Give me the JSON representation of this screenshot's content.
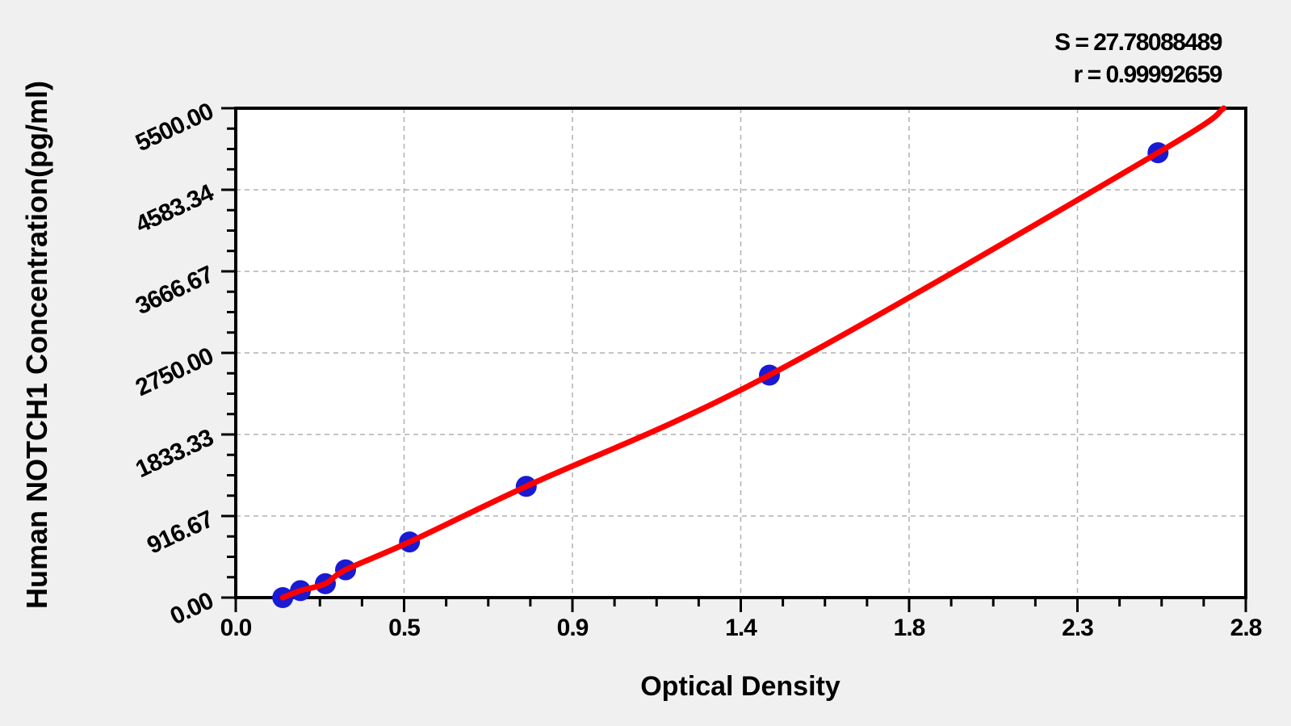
{
  "chart_data": {
    "type": "scatter",
    "title": "",
    "xlabel": "Optical Density",
    "ylabel": "Human NOTCH1 Concentration(pg/ml)",
    "annotations": {
      "s_text": "S = 27.78088489",
      "r_text": "r = 0.99992659",
      "S": 27.78088489,
      "r": 0.99992659
    },
    "x_axis": {
      "range": [
        0,
        2.75
      ],
      "tick_labels": [
        "0.0",
        "0.5",
        "0.9",
        "1.4",
        "1.8",
        "2.3",
        "2.8"
      ],
      "minor_ticks_per_interval": 3
    },
    "y_axis": {
      "range": [
        0,
        5500
      ],
      "tick_labels": [
        "0.00",
        "916.67",
        "1833.33",
        "2750.00",
        "3666.67",
        "4583.34",
        "5500.00"
      ],
      "minor_ticks_per_interval": 3
    },
    "grid": {
      "show": true,
      "style": "dashed",
      "on_major_ticks": true
    },
    "legend": "none",
    "series": [
      {
        "name": "standard-points",
        "type": "scatter",
        "color": "#1a1ad2",
        "marker_radius": 13,
        "points": [
          {
            "od": 0.128,
            "conc": 0
          },
          {
            "od": 0.176,
            "conc": 78.125
          },
          {
            "od": 0.244,
            "conc": 156.25
          },
          {
            "od": 0.299,
            "conc": 312.5
          },
          {
            "od": 0.473,
            "conc": 625
          },
          {
            "od": 0.791,
            "conc": 1250
          },
          {
            "od": 1.453,
            "conc": 2500
          },
          {
            "od": 2.511,
            "conc": 5000
          }
        ]
      },
      {
        "name": "fit-curve",
        "type": "line",
        "color": "#ff0000",
        "width": 7,
        "end_point": {
          "od": 2.69,
          "conc": 5500
        }
      }
    ],
    "colors": {
      "background": "#f0f0f0",
      "plot_background": "#ffffff",
      "axis": "#000000",
      "grid": "#b0b0b0",
      "point": "#1a1ad2",
      "curve": "#ff0000"
    }
  }
}
